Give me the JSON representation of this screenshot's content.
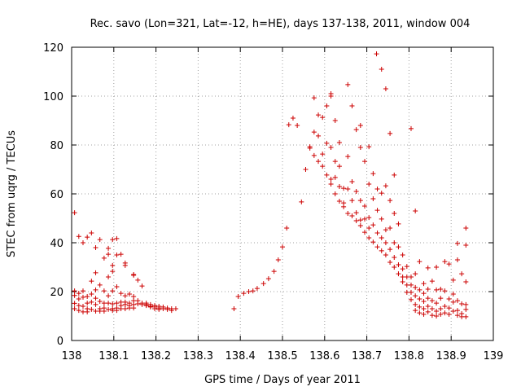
{
  "chart_data": {
    "type": "scatter",
    "title": "Rec. savo (Lon=321, Lat=-12, h=HE), days 137-138, 2011, window 004",
    "xlabel": "GPS time / Days of year 2011",
    "ylabel": "STEC from uqrg / TECUs",
    "xlim": [
      138.0,
      139.0
    ],
    "ylim": [
      0,
      120
    ],
    "grid": true,
    "marker": "plus",
    "color": "#cc0000",
    "x_ticks": [
      {
        "value": 138.0,
        "label": "138"
      },
      {
        "value": 138.1,
        "label": "138.1"
      },
      {
        "value": 138.2,
        "label": "138.2"
      },
      {
        "value": 138.3,
        "label": "138.3"
      },
      {
        "value": 138.4,
        "label": "138.4"
      },
      {
        "value": 138.5,
        "label": "138.5"
      },
      {
        "value": 138.6,
        "label": "138.6"
      },
      {
        "value": 138.7,
        "label": "138.7"
      },
      {
        "value": 138.8,
        "label": "138.8"
      },
      {
        "value": 138.9,
        "label": "138.9"
      },
      {
        "value": 139.0,
        "label": "139"
      }
    ],
    "y_ticks": [
      {
        "value": 0,
        "label": "0"
      },
      {
        "value": 20,
        "label": "20"
      },
      {
        "value": 40,
        "label": "40"
      },
      {
        "value": 60,
        "label": "60"
      },
      {
        "value": 80,
        "label": "80"
      },
      {
        "value": 100,
        "label": "100"
      },
      {
        "value": 120,
        "label": "120"
      }
    ],
    "series": [
      {
        "name": "STEC",
        "points": [
          [
            138.007,
            52.3
          ],
          [
            138.007,
            20.3
          ],
          [
            138.007,
            18.4
          ],
          [
            138.007,
            15.2
          ],
          [
            138.007,
            13.0
          ],
          [
            138.017,
            42.6
          ],
          [
            138.017,
            19.3
          ],
          [
            138.017,
            17.0
          ],
          [
            138.017,
            14.3
          ],
          [
            138.017,
            12.3
          ],
          [
            138.027,
            40.0
          ],
          [
            138.027,
            20.3
          ],
          [
            138.027,
            17.7
          ],
          [
            138.027,
            14.0
          ],
          [
            138.027,
            11.7
          ],
          [
            138.037,
            42.3
          ],
          [
            138.037,
            18.0
          ],
          [
            138.037,
            15.3
          ],
          [
            138.037,
            13.0
          ],
          [
            138.037,
            11.7
          ],
          [
            138.047,
            44.0
          ],
          [
            138.047,
            24.3
          ],
          [
            138.047,
            19.0
          ],
          [
            138.047,
            15.7
          ],
          [
            138.047,
            12.7
          ],
          [
            138.057,
            38.0
          ],
          [
            138.057,
            27.7
          ],
          [
            138.057,
            20.7
          ],
          [
            138.057,
            17.3
          ],
          [
            138.057,
            14.7
          ],
          [
            138.057,
            12.0
          ],
          [
            138.067,
            41.3
          ],
          [
            138.067,
            22.7
          ],
          [
            138.067,
            16.0
          ],
          [
            138.067,
            13.0
          ],
          [
            138.067,
            12.0
          ],
          [
            138.077,
            33.7
          ],
          [
            138.077,
            20.3
          ],
          [
            138.077,
            15.3
          ],
          [
            138.077,
            13.3
          ],
          [
            138.077,
            12.0
          ],
          [
            138.087,
            37.7
          ],
          [
            138.087,
            35.3
          ],
          [
            138.087,
            26.0
          ],
          [
            138.087,
            18.3
          ],
          [
            138.087,
            15.3
          ],
          [
            138.087,
            12.7
          ],
          [
            138.097,
            41.3
          ],
          [
            138.097,
            30.7
          ],
          [
            138.097,
            28.3
          ],
          [
            138.097,
            20.3
          ],
          [
            138.097,
            15.0
          ],
          [
            138.097,
            13.0
          ],
          [
            138.097,
            12.3
          ],
          [
            138.107,
            41.7
          ],
          [
            138.107,
            35.0
          ],
          [
            138.107,
            22.0
          ],
          [
            138.107,
            15.3
          ],
          [
            138.107,
            13.3
          ],
          [
            138.107,
            12.3
          ],
          [
            138.117,
            35.3
          ],
          [
            138.117,
            19.3
          ],
          [
            138.117,
            15.7
          ],
          [
            138.117,
            14.3
          ],
          [
            138.117,
            13.0
          ],
          [
            138.127,
            31.7
          ],
          [
            138.127,
            30.7
          ],
          [
            138.127,
            18.3
          ],
          [
            138.127,
            15.7
          ],
          [
            138.127,
            14.7
          ],
          [
            138.127,
            13.0
          ],
          [
            138.137,
            19.0
          ],
          [
            138.137,
            15.3
          ],
          [
            138.137,
            14.3
          ],
          [
            138.137,
            13.3
          ],
          [
            138.147,
            27.0
          ],
          [
            138.147,
            26.7
          ],
          [
            138.147,
            18.0
          ],
          [
            138.147,
            16.3
          ],
          [
            138.147,
            14.7
          ],
          [
            138.147,
            13.3
          ],
          [
            138.157,
            24.7
          ],
          [
            138.157,
            16.3
          ],
          [
            138.157,
            15.0
          ],
          [
            138.167,
            22.3
          ],
          [
            138.167,
            15.3
          ],
          [
            138.167,
            14.7
          ],
          [
            138.177,
            15.3
          ],
          [
            138.177,
            14.7
          ],
          [
            138.177,
            14.3
          ],
          [
            138.187,
            14.7
          ],
          [
            138.187,
            14.0
          ],
          [
            138.187,
            13.7
          ],
          [
            138.197,
            14.3
          ],
          [
            138.197,
            13.7
          ],
          [
            138.197,
            13.0
          ],
          [
            138.207,
            14.0
          ],
          [
            138.207,
            13.3
          ],
          [
            138.207,
            12.7
          ],
          [
            138.217,
            13.7
          ],
          [
            138.217,
            13.0
          ],
          [
            138.227,
            13.3
          ],
          [
            138.227,
            12.7
          ],
          [
            138.237,
            13.0
          ],
          [
            138.237,
            12.3
          ],
          [
            138.247,
            13.0
          ],
          [
            138.385,
            13.0
          ],
          [
            138.395,
            18.0
          ],
          [
            138.408,
            19.3
          ],
          [
            138.42,
            20.0
          ],
          [
            138.43,
            20.3
          ],
          [
            138.44,
            21.3
          ],
          [
            138.455,
            23.3
          ],
          [
            138.467,
            25.3
          ],
          [
            138.48,
            28.3
          ],
          [
            138.49,
            33.0
          ],
          [
            138.5,
            38.3
          ],
          [
            138.51,
            46.0
          ],
          [
            138.515,
            88.3
          ],
          [
            138.525,
            91.0
          ],
          [
            138.535,
            88.0
          ],
          [
            138.545,
            56.7
          ],
          [
            138.555,
            70.0
          ],
          [
            138.565,
            79.3
          ],
          [
            138.565,
            78.7
          ],
          [
            138.575,
            99.3
          ],
          [
            138.575,
            85.3
          ],
          [
            138.575,
            75.7
          ],
          [
            138.585,
            92.3
          ],
          [
            138.585,
            83.7
          ],
          [
            138.585,
            73.3
          ],
          [
            138.595,
            91.3
          ],
          [
            138.595,
            76.3
          ],
          [
            138.595,
            71.3
          ],
          [
            138.605,
            96.0
          ],
          [
            138.605,
            80.7
          ],
          [
            138.605,
            67.7
          ],
          [
            138.615,
            100.0
          ],
          [
            138.615,
            101.0
          ],
          [
            138.615,
            79.0
          ],
          [
            138.615,
            66.0
          ],
          [
            138.615,
            64.0
          ],
          [
            138.625,
            90.0
          ],
          [
            138.625,
            73.3
          ],
          [
            138.625,
            66.7
          ],
          [
            138.625,
            60.0
          ],
          [
            138.635,
            81.0
          ],
          [
            138.635,
            71.3
          ],
          [
            138.635,
            63.0
          ],
          [
            138.635,
            57.0
          ],
          [
            138.645,
            62.3
          ],
          [
            138.645,
            56.3
          ],
          [
            138.645,
            54.7
          ],
          [
            138.655,
            104.7
          ],
          [
            138.655,
            75.3
          ],
          [
            138.655,
            62.0
          ],
          [
            138.655,
            52.0
          ],
          [
            138.665,
            96.0
          ],
          [
            138.665,
            65.0
          ],
          [
            138.665,
            57.3
          ],
          [
            138.665,
            51.0
          ],
          [
            138.675,
            86.3
          ],
          [
            138.675,
            61.0
          ],
          [
            138.675,
            52.3
          ],
          [
            138.675,
            49.0
          ],
          [
            138.685,
            88.0
          ],
          [
            138.685,
            79.0
          ],
          [
            138.685,
            57.3
          ],
          [
            138.685,
            49.3
          ],
          [
            138.685,
            47.0
          ],
          [
            138.695,
            73.3
          ],
          [
            138.695,
            55.0
          ],
          [
            138.695,
            49.7
          ],
          [
            138.695,
            44.3
          ],
          [
            138.705,
            79.3
          ],
          [
            138.705,
            64.0
          ],
          [
            138.705,
            50.3
          ],
          [
            138.705,
            46.0
          ],
          [
            138.705,
            42.0
          ],
          [
            138.715,
            68.3
          ],
          [
            138.715,
            58.0
          ],
          [
            138.715,
            47.3
          ],
          [
            138.715,
            40.3
          ],
          [
            138.723,
            117.3
          ],
          [
            138.725,
            62.0
          ],
          [
            138.725,
            53.3
          ],
          [
            138.725,
            44.0
          ],
          [
            138.725,
            38.3
          ],
          [
            138.735,
            111.0
          ],
          [
            138.735,
            60.3
          ],
          [
            138.735,
            49.7
          ],
          [
            138.735,
            42.0
          ],
          [
            138.735,
            36.7
          ],
          [
            138.745,
            103.0
          ],
          [
            138.745,
            63.3
          ],
          [
            138.745,
            45.3
          ],
          [
            138.745,
            40.0
          ],
          [
            138.745,
            35.0
          ],
          [
            138.755,
            84.7
          ],
          [
            138.755,
            57.3
          ],
          [
            138.755,
            46.0
          ],
          [
            138.755,
            37.3
          ],
          [
            138.755,
            32.0
          ],
          [
            138.765,
            67.7
          ],
          [
            138.765,
            52.0
          ],
          [
            138.765,
            40.0
          ],
          [
            138.765,
            34.0
          ],
          [
            138.765,
            30.0
          ],
          [
            138.775,
            47.7
          ],
          [
            138.775,
            38.3
          ],
          [
            138.775,
            31.0
          ],
          [
            138.775,
            27.3
          ],
          [
            138.785,
            35.0
          ],
          [
            138.785,
            29.3
          ],
          [
            138.785,
            26.0
          ],
          [
            138.785,
            24.0
          ],
          [
            138.795,
            30.3
          ],
          [
            138.795,
            26.0
          ],
          [
            138.795,
            22.7
          ],
          [
            138.795,
            19.7
          ],
          [
            138.805,
            86.7
          ],
          [
            138.805,
            26.0
          ],
          [
            138.805,
            22.7
          ],
          [
            138.805,
            19.7
          ],
          [
            138.805,
            16.7
          ],
          [
            138.815,
            53.0
          ],
          [
            138.815,
            27.3
          ],
          [
            138.815,
            21.7
          ],
          [
            138.815,
            18.3
          ],
          [
            138.815,
            14.7
          ],
          [
            138.815,
            12.3
          ],
          [
            138.825,
            32.3
          ],
          [
            138.825,
            20.7
          ],
          [
            138.825,
            17.0
          ],
          [
            138.825,
            13.7
          ],
          [
            138.825,
            11.3
          ],
          [
            138.835,
            23.3
          ],
          [
            138.835,
            19.3
          ],
          [
            138.835,
            16.0
          ],
          [
            138.835,
            13.0
          ],
          [
            138.835,
            10.7
          ],
          [
            138.845,
            29.7
          ],
          [
            138.845,
            21.0
          ],
          [
            138.845,
            17.3
          ],
          [
            138.845,
            14.0
          ],
          [
            138.845,
            11.7
          ],
          [
            138.855,
            24.3
          ],
          [
            138.855,
            16.3
          ],
          [
            138.855,
            13.0
          ],
          [
            138.855,
            10.3
          ],
          [
            138.865,
            30.0
          ],
          [
            138.865,
            20.7
          ],
          [
            138.865,
            15.3
          ],
          [
            138.865,
            12.0
          ],
          [
            138.865,
            10.0
          ],
          [
            138.875,
            21.0
          ],
          [
            138.875,
            17.3
          ],
          [
            138.875,
            13.0
          ],
          [
            138.875,
            10.7
          ],
          [
            138.885,
            32.3
          ],
          [
            138.885,
            20.3
          ],
          [
            138.885,
            14.0
          ],
          [
            138.885,
            11.3
          ],
          [
            138.895,
            31.3
          ],
          [
            138.895,
            17.0
          ],
          [
            138.895,
            13.3
          ],
          [
            138.895,
            10.7
          ],
          [
            138.905,
            24.7
          ],
          [
            138.905,
            19.0
          ],
          [
            138.905,
            15.7
          ],
          [
            138.905,
            12.0
          ],
          [
            138.915,
            39.7
          ],
          [
            138.915,
            33.0
          ],
          [
            138.915,
            16.3
          ],
          [
            138.915,
            12.3
          ],
          [
            138.915,
            10.3
          ],
          [
            138.925,
            27.3
          ],
          [
            138.925,
            15.0
          ],
          [
            138.925,
            11.0
          ],
          [
            138.925,
            9.7
          ],
          [
            138.935,
            46.0
          ],
          [
            138.935,
            39.0
          ],
          [
            138.935,
            24.0
          ],
          [
            138.935,
            14.7
          ],
          [
            138.935,
            12.7
          ],
          [
            138.935,
            9.7
          ]
        ]
      }
    ]
  }
}
